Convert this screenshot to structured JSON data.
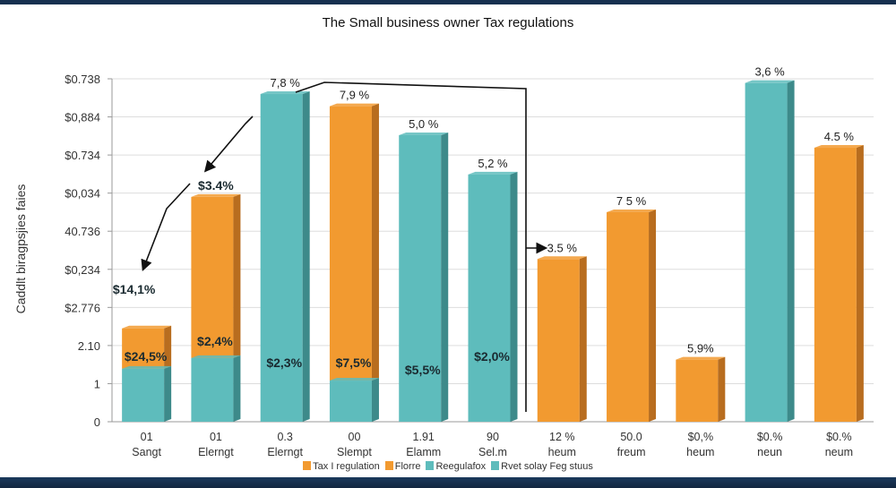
{
  "colors": {
    "orange": "#f29a30",
    "orange_side": "#b86d1f",
    "teal": "#5ebcbc",
    "teal_side": "#3d8a8a",
    "grid": "#dddddd",
    "frame": "#16304f"
  },
  "chart_data": {
    "type": "bar",
    "title": "The Small business owner Tax regulations",
    "ylabel": "Caddlt biragpsjies faies",
    "xlabel": "",
    "y_ticks": [
      "0",
      "1",
      "2.10",
      "$2.776",
      "$0,234",
      "40.736",
      "$0,034",
      "$0.734",
      "$0,884",
      "$0.738"
    ],
    "ylim": [
      0,
      9
    ],
    "grid": true,
    "legend_position": "bottom-center",
    "legend": [
      {
        "label": "Tax I regulation",
        "color": "orange"
      },
      {
        "label": "Florre",
        "color": "orange"
      },
      {
        "label": "Reegulafox",
        "color": "teal"
      },
      {
        "label": "Rvet solay Feg stuus",
        "color": "teal"
      }
    ],
    "categories": [
      {
        "line1": "01",
        "line2": "Sangt"
      },
      {
        "line1": "01",
        "line2": "Elerngt"
      },
      {
        "line1": "0.3",
        "line2": "Elerngt"
      },
      {
        "line1": "00",
        "line2": "Slempt"
      },
      {
        "line1": "1.91",
        "line2": "Elamm"
      },
      {
        "line1": "90",
        "line2": "Sel.m"
      },
      {
        "line1": "12 %",
        "line2": "heum"
      },
      {
        "line1": "50.0",
        "line2": "freum"
      },
      {
        "line1": "$0,%",
        "line2": "heum"
      },
      {
        "line1": "$0.%",
        "line2": "neun"
      },
      {
        "line1": "$0.%",
        "line2": "neum"
      }
    ],
    "series": [
      {
        "name": "Teal (base)",
        "color": "teal",
        "values": [
          1.39,
          1.67,
          8.6,
          1.08,
          7.52,
          6.49,
          0,
          0,
          0,
          8.89,
          0
        ]
      },
      {
        "name": "Orange (stacked top)",
        "color": "orange",
        "values": [
          2.45,
          5.9,
          0,
          8.28,
          0,
          0,
          4.27,
          5.5,
          1.63,
          0,
          7.19
        ]
      }
    ],
    "top_labels": [
      "$14,1%",
      "$3.4%",
      "7,8 %",
      "7,9 %",
      "5,0 %",
      "5,2 %",
      "3.5 %",
      "7 5 %",
      "5,9%",
      "3,6 %",
      "4.5 %"
    ],
    "inner_labels": [
      "$24,5%",
      "$2,4%",
      "$2,3%",
      "$7,5%",
      "$5,5%",
      "$2,0%",
      "",
      "",
      "",
      "",
      ""
    ],
    "annotations": [
      "arrow from 7,8 % bar down to $3.4%",
      "arrow from $3.4% down to $14,1%",
      "connector from 7,8 % over to 3.5 % bar"
    ]
  }
}
